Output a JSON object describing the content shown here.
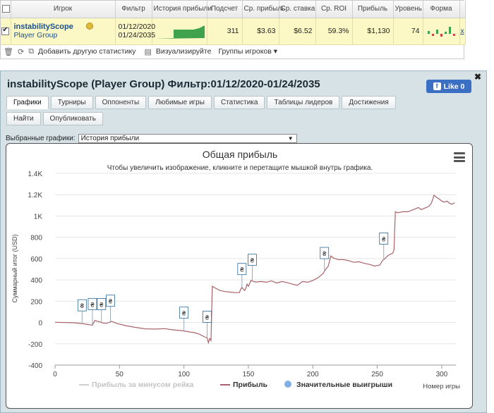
{
  "stats": {
    "headers": [
      "Игрок",
      "Фильтр",
      "История прибыли",
      "Подсчет",
      "Ср. прибыль",
      "Ср. ставка",
      "Ср. ROI",
      "Прибыль",
      "Уровень",
      "Форма"
    ],
    "row": {
      "checked": true,
      "player_name": "instabilityScope",
      "player_type": "Player Group",
      "filter_from": "01/12/2020",
      "filter_to": "01/24/2035",
      "count": "311",
      "avg_profit": "$3.63",
      "avg_stake": "$6.52",
      "avg_roi": "59.3%",
      "profit": "$1,130",
      "level": "74",
      "remove": "x"
    }
  },
  "toolbar": {
    "add_stats": "Добавить другую статистику",
    "visualize": "Визуализируйте",
    "player_groups": "Группы игроков"
  },
  "panel": {
    "title": "instabilityScope (Player Group) Фильтр:01/12/2020-01/24/2035",
    "like_label": "Like 0",
    "tabs": [
      "Графики",
      "Турниры",
      "Оппоненты",
      "Любимые игры",
      "Статистика",
      "Таблицы лидеров",
      "Достижения",
      "Найти",
      "Опубликовать"
    ],
    "selected_chart_label": "Выбранные графики:",
    "selected_chart_value": "История прибыли"
  },
  "chart_data": {
    "type": "line",
    "title": "Общая прибыль",
    "subtitle": "Чтобы увеличить изображение, кликните и перетащите мышкой внутрь графика.",
    "xlabel": "Номер игры",
    "ylabel": "Суммарный итог (USD)",
    "xlim": [
      0,
      311
    ],
    "ylim": [
      -400,
      1400
    ],
    "x_ticks": [
      0,
      50,
      100,
      150,
      200,
      250,
      300
    ],
    "y_ticks": [
      -400,
      -200,
      0,
      200,
      400,
      600,
      800,
      1000,
      1200,
      1400
    ],
    "y_tick_labels": [
      "-400",
      "-200",
      "0",
      "200",
      "400",
      "600",
      "800",
      "1K",
      "1.2K",
      "1.4K"
    ],
    "legend": [
      "Прибыль за минусом рейка",
      "Прибыль",
      "Значительные выигрыши"
    ],
    "series": [
      {
        "name": "Прибыль",
        "color": "#a8636a",
        "points": [
          [
            0,
            2
          ],
          [
            8,
            0
          ],
          [
            15,
            -3
          ],
          [
            22,
            -12
          ],
          [
            26,
            -20
          ],
          [
            29,
            -25
          ],
          [
            31,
            20
          ],
          [
            33,
            10
          ],
          [
            35,
            5
          ],
          [
            37,
            -5
          ],
          [
            40,
            -8
          ],
          [
            44,
            10
          ],
          [
            48,
            -10
          ],
          [
            55,
            -30
          ],
          [
            62,
            -45
          ],
          [
            70,
            -60
          ],
          [
            78,
            -62
          ],
          [
            85,
            -58
          ],
          [
            92,
            -70
          ],
          [
            97,
            -75
          ],
          [
            100,
            -80
          ],
          [
            104,
            -88
          ],
          [
            108,
            -95
          ],
          [
            112,
            -110
          ],
          [
            116,
            -135
          ],
          [
            118,
            -145
          ],
          [
            119,
            -190
          ],
          [
            120,
            -150
          ],
          [
            121,
            -170
          ],
          [
            122,
            340
          ],
          [
            124,
            325
          ],
          [
            128,
            300
          ],
          [
            132,
            290
          ],
          [
            136,
            285
          ],
          [
            140,
            280
          ],
          [
            143,
            280
          ],
          [
            144,
            310
          ],
          [
            145,
            330
          ],
          [
            147,
            300
          ],
          [
            148,
            320
          ],
          [
            149,
            360
          ],
          [
            150,
            340
          ],
          [
            152,
            395
          ],
          [
            154,
            385
          ],
          [
            156,
            380
          ],
          [
            160,
            385
          ],
          [
            164,
            378
          ],
          [
            168,
            390
          ],
          [
            172,
            370
          ],
          [
            176,
            385
          ],
          [
            180,
            375
          ],
          [
            184,
            360
          ],
          [
            188,
            350
          ],
          [
            192,
            385
          ],
          [
            196,
            378
          ],
          [
            200,
            395
          ],
          [
            204,
            420
          ],
          [
            206,
            440
          ],
          [
            208,
            460
          ],
          [
            210,
            500
          ],
          [
            212,
            530
          ],
          [
            214,
            625
          ],
          [
            216,
            605
          ],
          [
            220,
            590
          ],
          [
            224,
            590
          ],
          [
            228,
            580
          ],
          [
            232,
            565
          ],
          [
            236,
            570
          ],
          [
            240,
            555
          ],
          [
            244,
            545
          ],
          [
            248,
            530
          ],
          [
            252,
            540
          ],
          [
            254,
            580
          ],
          [
            256,
            600
          ],
          [
            258,
            625
          ],
          [
            260,
            640
          ],
          [
            262,
            650
          ],
          [
            263,
            680
          ],
          [
            264,
            1040
          ],
          [
            266,
            1030
          ],
          [
            270,
            1040
          ],
          [
            274,
            1040
          ],
          [
            278,
            1060
          ],
          [
            282,
            1080
          ],
          [
            284,
            1060
          ],
          [
            288,
            1080
          ],
          [
            290,
            1090
          ],
          [
            292,
            1120
          ],
          [
            294,
            1195
          ],
          [
            296,
            1175
          ],
          [
            298,
            1160
          ],
          [
            300,
            1140
          ],
          [
            302,
            1130
          ],
          [
            304,
            1140
          ],
          [
            306,
            1120
          ],
          [
            308,
            1110
          ],
          [
            310,
            1125
          ]
        ]
      }
    ],
    "notable_wins_x": [
      21,
      29,
      36,
      43,
      100,
      118,
      145,
      153,
      209,
      255
    ]
  }
}
